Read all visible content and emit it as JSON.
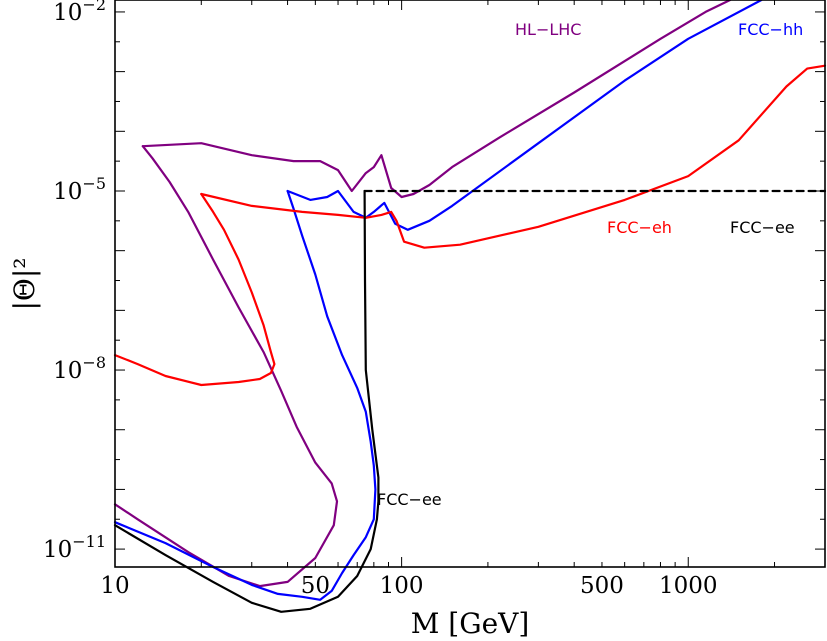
{
  "chart_data": {
    "type": "line",
    "title": "",
    "xlabel": "M [GeV]",
    "ylabel": "|Θ|²",
    "xscale": "log",
    "yscale": "log",
    "xlim": [
      10,
      3000
    ],
    "ylim_log10": [
      -11.3,
      -1.8
    ],
    "xticks": [
      {
        "value": 10,
        "label": "10"
      },
      {
        "value": 50,
        "label": "50"
      },
      {
        "value": 100,
        "label": "100"
      },
      {
        "value": 500,
        "label": "500"
      },
      {
        "value": 1000,
        "label": "1000"
      }
    ],
    "yticks": [
      {
        "log10": -2,
        "base": "10",
        "exp": "−2"
      },
      {
        "log10": -5,
        "base": "10",
        "exp": "−5"
      },
      {
        "log10": -8,
        "base": "10",
        "exp": "−8"
      },
      {
        "log10": -11,
        "base": "10",
        "exp": "−11"
      }
    ],
    "series": [
      {
        "name": "HL-LHC",
        "color": "#800080",
        "dashed": false,
        "points": [
          [
            12.5,
            -4.25
          ],
          [
            13.5,
            -4.45
          ],
          [
            15.5,
            -4.85
          ],
          [
            18,
            -5.35
          ],
          [
            22,
            -6.15
          ],
          [
            27,
            -6.95
          ],
          [
            33,
            -7.7
          ],
          [
            38,
            -8.35
          ],
          [
            43,
            -8.95
          ],
          [
            50,
            -9.55
          ],
          [
            57,
            -9.9
          ],
          [
            59.5,
            -10.2
          ],
          [
            58,
            -10.6
          ],
          [
            50,
            -11.15
          ],
          [
            40,
            -11.55
          ],
          [
            32,
            -11.62
          ],
          [
            25,
            -11.45
          ],
          [
            18,
            -11.05
          ],
          [
            12,
            -10.5
          ],
          [
            10,
            -10.25
          ]
        ],
        "points2": [
          [
            12.5,
            -4.25
          ],
          [
            20,
            -4.2
          ],
          [
            30,
            -4.4
          ],
          [
            42,
            -4.5
          ],
          [
            52,
            -4.5
          ],
          [
            60,
            -4.65
          ],
          [
            67,
            -5.0
          ],
          [
            75,
            -4.7
          ],
          [
            80,
            -4.6
          ],
          [
            85,
            -4.4
          ],
          [
            92,
            -4.95
          ],
          [
            100,
            -5.1
          ],
          [
            110,
            -5.05
          ],
          [
            125,
            -4.9
          ],
          [
            150,
            -4.6
          ],
          [
            220,
            -4.1
          ],
          [
            400,
            -3.35
          ],
          [
            800,
            -2.45
          ],
          [
            1150,
            -2.0
          ],
          [
            1400,
            -1.8
          ]
        ]
      },
      {
        "name": "FCC-hh",
        "color": "#0000ff",
        "dashed": false,
        "points": [
          [
            40,
            -5.0
          ],
          [
            42,
            -5.3
          ],
          [
            45,
            -5.75
          ],
          [
            50,
            -6.4
          ],
          [
            55,
            -7.1
          ],
          [
            62,
            -7.75
          ],
          [
            70,
            -8.3
          ],
          [
            75,
            -8.7
          ],
          [
            78,
            -9.2
          ],
          [
            80,
            -9.6
          ],
          [
            81,
            -10.0
          ],
          [
            80,
            -10.5
          ],
          [
            75,
            -10.8
          ],
          [
            68,
            -11.1
          ],
          [
            62,
            -11.4
          ],
          [
            57,
            -11.7
          ],
          [
            52,
            -11.85
          ],
          [
            45,
            -11.8
          ],
          [
            37,
            -11.75
          ],
          [
            30,
            -11.6
          ],
          [
            22,
            -11.3
          ],
          [
            15,
            -10.9
          ],
          [
            10,
            -10.55
          ]
        ],
        "points2": [
          [
            40,
            -5.0
          ],
          [
            48,
            -5.15
          ],
          [
            55,
            -5.1
          ],
          [
            60,
            -5.0
          ],
          [
            68,
            -5.35
          ],
          [
            75,
            -5.45
          ],
          [
            80,
            -5.35
          ],
          [
            87,
            -5.2
          ],
          [
            95,
            -5.55
          ],
          [
            105,
            -5.65
          ],
          [
            125,
            -5.5
          ],
          [
            150,
            -5.25
          ],
          [
            300,
            -4.2
          ],
          [
            600,
            -3.15
          ],
          [
            1000,
            -2.45
          ],
          [
            1800,
            -1.8
          ]
        ]
      },
      {
        "name": "FCC-eh",
        "color": "#ff0000",
        "dashed": false,
        "points": [
          [
            20,
            -5.05
          ],
          [
            22,
            -5.35
          ],
          [
            24,
            -5.65
          ],
          [
            27,
            -6.15
          ],
          [
            30,
            -6.7
          ],
          [
            33,
            -7.25
          ],
          [
            35,
            -7.7
          ],
          [
            36,
            -7.9
          ],
          [
            35,
            -8.05
          ],
          [
            32,
            -8.15
          ],
          [
            27,
            -8.2
          ],
          [
            20,
            -8.25
          ],
          [
            15,
            -8.1
          ],
          [
            12,
            -7.9
          ],
          [
            10,
            -7.75
          ]
        ],
        "points2": [
          [
            20,
            -5.05
          ],
          [
            30,
            -5.25
          ],
          [
            45,
            -5.35
          ],
          [
            60,
            -5.4
          ],
          [
            75,
            -5.45
          ],
          [
            85,
            -5.4
          ],
          [
            92,
            -5.35
          ],
          [
            96,
            -5.5
          ],
          [
            102,
            -5.85
          ],
          [
            120,
            -5.95
          ],
          [
            160,
            -5.9
          ],
          [
            300,
            -5.6
          ],
          [
            600,
            -5.15
          ],
          [
            1000,
            -4.75
          ],
          [
            1500,
            -4.15
          ],
          [
            2200,
            -3.25
          ],
          [
            2600,
            -2.95
          ],
          [
            3000,
            -2.9
          ]
        ]
      },
      {
        "name": "FCC-ee",
        "color": "#000000",
        "dashed": false,
        "points": [
          [
            10,
            -10.6
          ],
          [
            15,
            -11.1
          ],
          [
            22,
            -11.55
          ],
          [
            30,
            -11.9
          ],
          [
            38,
            -12.05
          ],
          [
            48,
            -12.0
          ],
          [
            60,
            -11.8
          ],
          [
            70,
            -11.45
          ],
          [
            78,
            -11.0
          ],
          [
            82,
            -10.5
          ],
          [
            83,
            -10.2
          ],
          [
            83,
            -9.8
          ],
          [
            79,
            -9.0
          ],
          [
            75,
            -8.0
          ],
          [
            74.5,
            -6.5
          ],
          [
            74.3,
            -5.0
          ]
        ]
      },
      {
        "name": "FCC-ee",
        "color": "#000000",
        "dashed": true,
        "points": [
          [
            74.3,
            -5.0
          ],
          [
            3000,
            -5.0
          ]
        ]
      }
    ],
    "annotations": [
      {
        "text": "HL−LHC",
        "color": "#800080"
      },
      {
        "text": "FCC−hh",
        "color": "#0000ff"
      },
      {
        "text": "FCC−eh",
        "color": "#ff0000"
      },
      {
        "text": "FCC−ee",
        "color": "#000000"
      },
      {
        "text": "FCC−ee",
        "color": "#000000"
      }
    ]
  }
}
